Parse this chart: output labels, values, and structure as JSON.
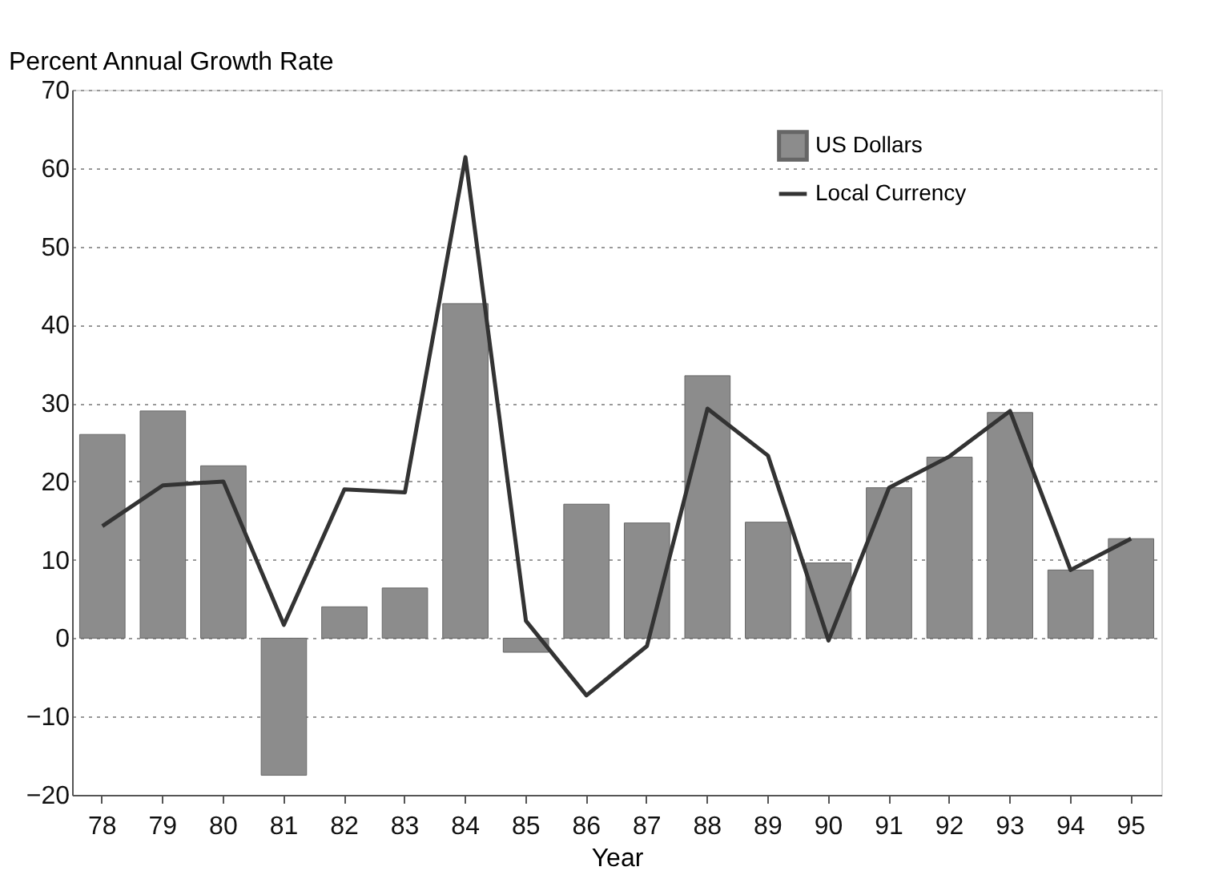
{
  "chart_data": {
    "type": "bar",
    "categories": [
      "78",
      "79",
      "80",
      "81",
      "82",
      "83",
      "84",
      "85",
      "86",
      "87",
      "88",
      "89",
      "90",
      "91",
      "92",
      "93",
      "94",
      "95"
    ],
    "xlabel": "Year",
    "ylabel": "Percent Annual Growth Rate",
    "series": [
      {
        "name": "US Dollars",
        "color": "#8c8c8c",
        "values": [
          26,
          29,
          22,
          -17.5,
          4,
          6.4,
          42.7,
          -1.8,
          17.1,
          14.7,
          33.5,
          14.8,
          9.6,
          19.2,
          23.1,
          28.8,
          8.7,
          12.7
        ]
      },
      {
        "name": "Local Currency",
        "type": "line",
        "color": "#333333",
        "values": [
          14.3,
          19.5,
          20,
          1.7,
          19,
          18.6,
          61.4,
          2.2,
          -7.3,
          -1,
          29.3,
          23.3,
          -0.3,
          19.2,
          23.2,
          29,
          8.7,
          12.7
        ]
      }
    ],
    "ylim": [
      -20,
      70
    ],
    "yticks": [
      -20,
      -10,
      0,
      10,
      20,
      30,
      40,
      50,
      60,
      70
    ],
    "grid": "y",
    "legend": "top right",
    "marker": "none",
    "line_style": "solid"
  }
}
